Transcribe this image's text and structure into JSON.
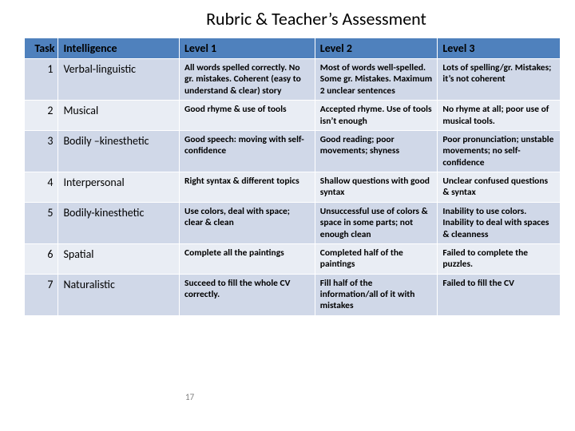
{
  "title": "Rubric & Teacher’s Assessment",
  "slide_number": "17",
  "columns": {
    "task": "Task",
    "intelligence": "Intelligence",
    "l1": "Level 1",
    "l2": "Level 2",
    "l3": "Level 3"
  },
  "rows": [
    {
      "n": "1",
      "intel": "Verbal-linguistic",
      "l1": "All words spelled correctly. No gr. mistakes. Coherent (easy to understand & clear) story",
      "l2": "Most of words well-spelled. Some gr. Mistakes. Maximum 2 unclear sentences",
      "l3": "Lots of spelling/gr. Mistakes; it’s not coherent"
    },
    {
      "n": "2",
      "intel": "Musical",
      "l1": "Good rhyme & use of tools",
      "l2": "Accepted rhyme. Use of tools isn’t enough",
      "l3": "No rhyme at all; poor use of musical tools."
    },
    {
      "n": "3",
      "intel": "Bodily –kinesthetic",
      "l1": "Good speech: moving with self-confidence",
      "l2": "Good reading; poor movements; shyness",
      "l3": "Poor pronunciation; unstable movements; no self-confidence"
    },
    {
      "n": "4",
      "intel": "Interpersonal",
      "l1": "Right syntax & different topics",
      "l2": "Shallow questions with good syntax",
      "l3": "Unclear confused questions & syntax"
    },
    {
      "n": "5",
      "intel": "Bodily-kinesthetic",
      "l1": "Use colors, deal with space; clear & clean",
      "l2": "Unsuccessful use of colors & space in some parts; not enough clean",
      "l3": "Inability to use colors. Inability to deal with spaces & cleanness"
    },
    {
      "n": "6",
      "intel": "Spatial",
      "l1": "Complete all the paintings",
      "l2": "Completed half of the paintings",
      "l3": "Failed to complete the puzzles."
    },
    {
      "n": "7",
      "intel": "Naturalistic",
      "l1": "Succeed to fill the whole CV correctly.",
      "l2": "Fill half of the information/all of it with mistakes",
      "l3": "Failed to fill the CV"
    }
  ],
  "style": {
    "header_bg": "#4f81bd",
    "band_a": "#d0d8e8",
    "band_b": "#e9edf4",
    "border_color": "#ffffff",
    "title_fontsize": 22,
    "header_fontsize": 14,
    "body_fontsize": 12,
    "cell_fontweight": 700
  }
}
